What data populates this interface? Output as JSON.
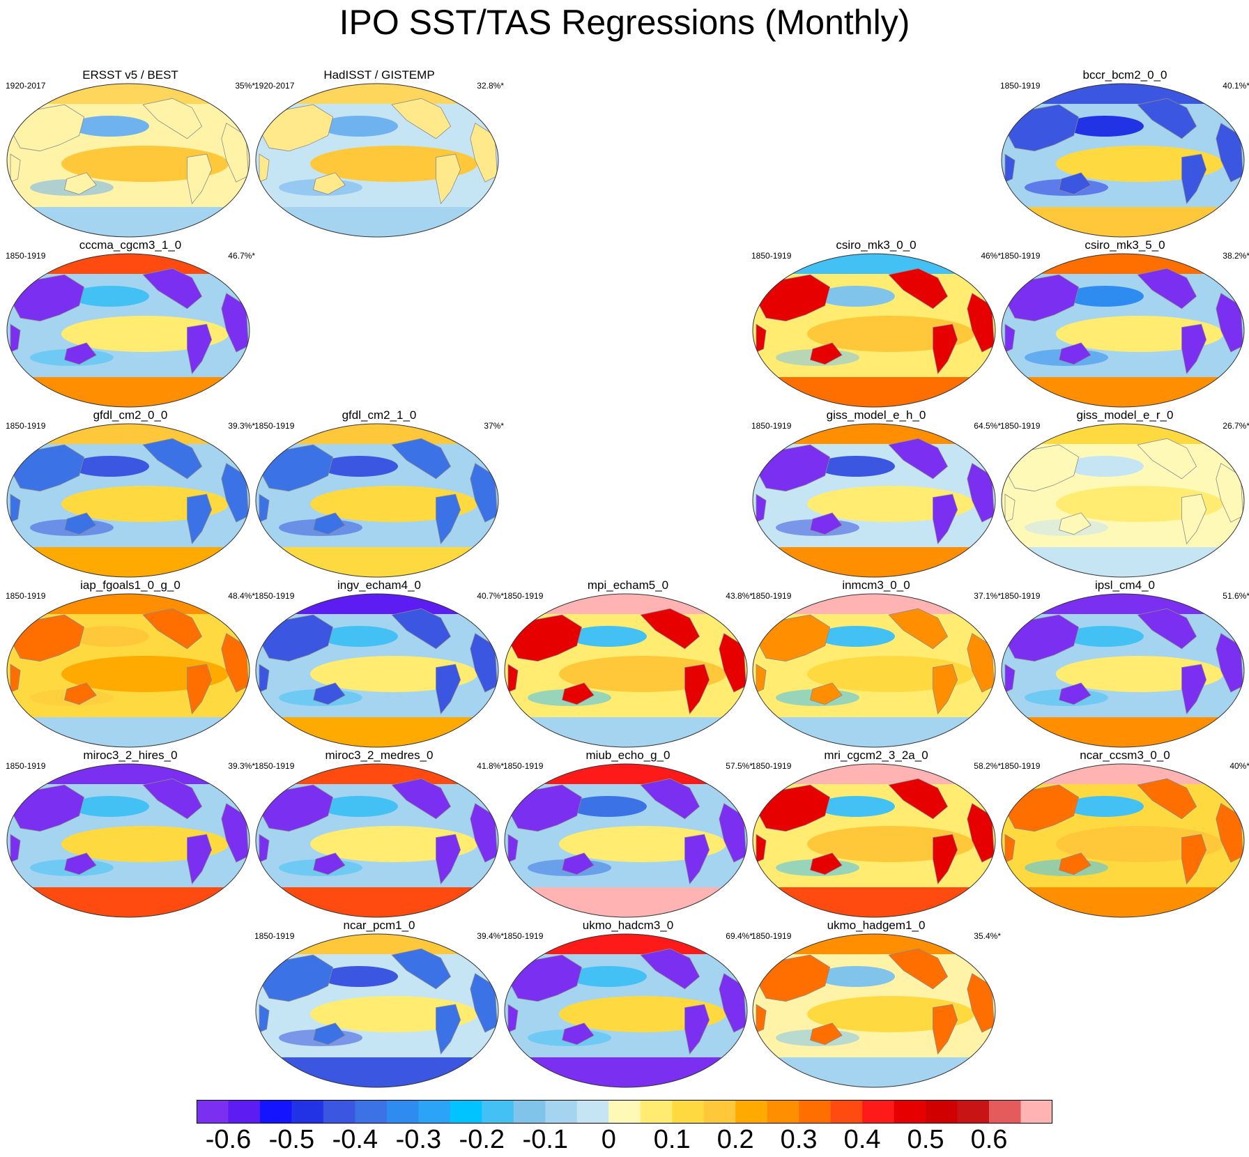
{
  "title": "IPO SST/TAS Regressions (Monthly)",
  "colorbar": {
    "colors": [
      "#7b2ff0",
      "#5c1cf2",
      "#1414ff",
      "#2233e6",
      "#3b56e0",
      "#3b73e6",
      "#2e8bf0",
      "#2ba3f7",
      "#00c3ff",
      "#43c1f5",
      "#80c4ec",
      "#a4d4f0",
      "#c6e5f4",
      "#fff9b8",
      "#ffec70",
      "#ffd940",
      "#ffc83a",
      "#ffaa00",
      "#ff8f00",
      "#ff6f00",
      "#ff4a10",
      "#ff1a1a",
      "#e60000",
      "#d10000",
      "#c81414",
      "#e55a5a",
      "#ffb3b3"
    ],
    "tick_labels": [
      "-0.6",
      "-0.5",
      "-0.4",
      "-0.3",
      "-0.2",
      "-0.1",
      "0",
      "0.1",
      "0.2",
      "0.3",
      "0.4",
      "0.5",
      "0.6"
    ]
  },
  "panels": [
    {
      "title": "ERSST v5 / BEST",
      "years": "1920-2017",
      "pct": "35%*",
      "row": 0,
      "col": 0,
      "land": "#fff3a8",
      "ocean": "#fff3a8",
      "north": "#ffd65c",
      "south": "#a4d4f0",
      "tropics": "#ffc83a",
      "npac": "#6fb2f0"
    },
    {
      "title": "HadISST / GISTEMP",
      "years": "1920-2017",
      "pct": "32.8%*",
      "row": 0,
      "col": 1,
      "land": "#ffe98a",
      "ocean": "#c6e5f4",
      "north": "#ffd65c",
      "south": "#a4d4f0",
      "tropics": "#ffc83a",
      "npac": "#6fb2f0"
    },
    {
      "title": "bccr_bcm2_0_0",
      "years": "1850-1919",
      "pct": "40.1%*",
      "row": 0,
      "col": 4,
      "land": "#3b56e0",
      "ocean": "#a4d4f0",
      "north": "#3b56e0",
      "south": "#ffc83a",
      "tropics": "#ffd940",
      "npac": "#2233e6"
    },
    {
      "title": "cccma_cgcm3_1_0",
      "years": "1850-1919",
      "pct": "46.7%*",
      "row": 1,
      "col": 0,
      "land": "#7b2ff0",
      "ocean": "#a4d4f0",
      "north": "#ff4a10",
      "south": "#ff8f00",
      "tropics": "#ffec70",
      "npac": "#43c1f5"
    },
    {
      "title": "csiro_mk3_0_0",
      "years": "1850-1919",
      "pct": "46%*",
      "row": 1,
      "col": 3,
      "land": "#e60000",
      "ocean": "#ffec70",
      "north": "#43c1f5",
      "south": "#ff6f00",
      "tropics": "#ffc83a",
      "npac": "#80c4ec"
    },
    {
      "title": "csiro_mk3_5_0",
      "years": "1850-1919",
      "pct": "38.2%*",
      "row": 1,
      "col": 4,
      "land": "#7b2ff0",
      "ocean": "#a4d4f0",
      "north": "#ff6f00",
      "south": "#ff8f00",
      "tropics": "#ffec70",
      "npac": "#2e8bf0"
    },
    {
      "title": "gfdl_cm2_0_0",
      "years": "1850-1919",
      "pct": "39.3%*",
      "row": 2,
      "col": 0,
      "land": "#3b73e6",
      "ocean": "#a4d4f0",
      "north": "#ffc83a",
      "south": "#ffaa00",
      "tropics": "#ffd940",
      "npac": "#3b56e0"
    },
    {
      "title": "gfdl_cm2_1_0",
      "years": "1850-1919",
      "pct": "37%*",
      "row": 2,
      "col": 1,
      "land": "#3b73e6",
      "ocean": "#a4d4f0",
      "north": "#ffc83a",
      "south": "#ffd940",
      "tropics": "#ffd940",
      "npac": "#3b56e0"
    },
    {
      "title": "giss_model_e_h_0",
      "years": "1850-1919",
      "pct": "64.5%*",
      "row": 2,
      "col": 3,
      "land": "#7b2ff0",
      "ocean": "#c6e5f4",
      "north": "#ff8f00",
      "south": "#ff8f00",
      "tropics": "#ffec70",
      "npac": "#3b56e0"
    },
    {
      "title": "giss_model_e_r_0",
      "years": "1850-1919",
      "pct": "26.7%*",
      "row": 2,
      "col": 4,
      "land": "#fff9b8",
      "ocean": "#fff9b8",
      "north": "#ffd940",
      "south": "#c6e5f4",
      "tropics": "#ffec70",
      "npac": "#c6e5f4"
    },
    {
      "title": "iap_fgoals1_0_g_0",
      "years": "1850-1919",
      "pct": "48.4%*",
      "row": 3,
      "col": 0,
      "land": "#ff6f00",
      "ocean": "#ffd940",
      "north": "#ff8f00",
      "south": "#a4d4f0",
      "tropics": "#ffaa00",
      "npac": "#ffc83a"
    },
    {
      "title": "ingv_echam4_0",
      "years": "1850-1919",
      "pct": "40.7%*",
      "row": 3,
      "col": 1,
      "land": "#3b56e0",
      "ocean": "#a4d4f0",
      "north": "#5c1cf2",
      "south": "#ffaa00",
      "tropics": "#ffec70",
      "npac": "#43c1f5"
    },
    {
      "title": "mpi_echam5_0",
      "years": "1850-1919",
      "pct": "43.8%*",
      "row": 3,
      "col": 2,
      "land": "#e60000",
      "ocean": "#ffec70",
      "north": "#ffb3b3",
      "south": "#a4d4f0",
      "tropics": "#ffc83a",
      "npac": "#43c1f5"
    },
    {
      "title": "inmcm3_0_0",
      "years": "1850-1919",
      "pct": "37.1%*",
      "row": 3,
      "col": 3,
      "land": "#ff8f00",
      "ocean": "#ffec70",
      "north": "#ffb3b3",
      "south": "#a4d4f0",
      "tropics": "#ffd940",
      "npac": "#43c1f5"
    },
    {
      "title": "ipsl_cm4_0",
      "years": "1850-1919",
      "pct": "51.6%*",
      "row": 3,
      "col": 4,
      "land": "#7b2ff0",
      "ocean": "#a4d4f0",
      "north": "#7b2ff0",
      "south": "#ff8f00",
      "tropics": "#ffec70",
      "npac": "#43c1f5"
    },
    {
      "title": "miroc3_2_hires_0",
      "years": "1850-1919",
      "pct": "39.3%*",
      "row": 4,
      "col": 0,
      "land": "#7b2ff0",
      "ocean": "#a4d4f0",
      "north": "#7b2ff0",
      "south": "#ff4a10",
      "tropics": "#ffd940",
      "npac": "#43c1f5"
    },
    {
      "title": "miroc3_2_medres_0",
      "years": "1850-1919",
      "pct": "41.8%*",
      "row": 4,
      "col": 1,
      "land": "#7b2ff0",
      "ocean": "#a4d4f0",
      "north": "#ff4a10",
      "south": "#ff4a10",
      "tropics": "#ffec70",
      "npac": "#43c1f5"
    },
    {
      "title": "miub_echo_g_0",
      "years": "1850-1919",
      "pct": "57.5%*",
      "row": 4,
      "col": 2,
      "land": "#7b2ff0",
      "ocean": "#a4d4f0",
      "north": "#ff1a1a",
      "south": "#ffb3b3",
      "tropics": "#ffec70",
      "npac": "#3b73e6"
    },
    {
      "title": "mri_cgcm2_3_2a_0",
      "years": "1850-1919",
      "pct": "58.2%*",
      "row": 4,
      "col": 3,
      "land": "#e60000",
      "ocean": "#ffec70",
      "north": "#ffb3b3",
      "south": "#ff4a10",
      "tropics": "#ffc83a",
      "npac": "#43c1f5"
    },
    {
      "title": "ncar_ccsm3_0_0",
      "years": "1850-1919",
      "pct": "40%*",
      "row": 4,
      "col": 4,
      "land": "#ff6f00",
      "ocean": "#ffd940",
      "north": "#ffb3b3",
      "south": "#ff8f00",
      "tropics": "#ffc83a",
      "npac": "#43c1f5"
    },
    {
      "title": "ncar_pcm1_0",
      "years": "1850-1919",
      "pct": "39.4%*",
      "row": 5,
      "col": 1,
      "land": "#3b73e6",
      "ocean": "#c6e5f4",
      "north": "#ffc83a",
      "south": "#3b56e0",
      "tropics": "#ffec70",
      "npac": "#3b56e0"
    },
    {
      "title": "ukmo_hadcm3_0",
      "years": "1850-1919",
      "pct": "69.4%*",
      "row": 5,
      "col": 2,
      "land": "#7b2ff0",
      "ocean": "#a4d4f0",
      "north": "#ff1a1a",
      "south": "#7b2ff0",
      "tropics": "#ffd940",
      "npac": "#43c1f5"
    },
    {
      "title": "ukmo_hadgem1_0",
      "years": "1850-1919",
      "pct": "35.4%*",
      "row": 5,
      "col": 3,
      "land": "#ff6f00",
      "ocean": "#fff3a8",
      "north": "#ff8f00",
      "south": "#a4d4f0",
      "tropics": "#ffd940",
      "npac": "#80c4ec"
    }
  ]
}
